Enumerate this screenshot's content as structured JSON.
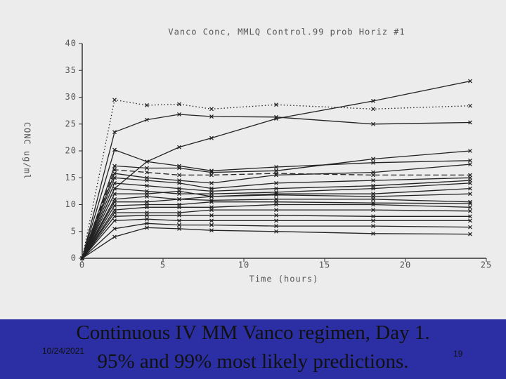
{
  "chart_data": {
    "type": "line",
    "title": "Vanco Conc, MMLQ Control.99 prob Horiz #1",
    "xlabel": "Time (hours)",
    "ylabel": "CONC ug/ml",
    "x": [
      0,
      2,
      4,
      6,
      8,
      12,
      18,
      24
    ],
    "xlim": [
      0,
      25
    ],
    "xticks": [
      0,
      5,
      10,
      15,
      20,
      25
    ],
    "ylim": [
      0,
      40
    ],
    "yticks": [
      0,
      5,
      10,
      15,
      20,
      25,
      30,
      35,
      40
    ],
    "marker": "x",
    "series": [
      {
        "color": "#222",
        "style": "dotted",
        "values": [
          0,
          29.5,
          28.5,
          28.7,
          27.8,
          28.6,
          27.8,
          28.4
        ]
      },
      {
        "color": "#222",
        "values": [
          0,
          23.5,
          25.8,
          26.8,
          26.4,
          26.3,
          25,
          25.3
        ]
      },
      {
        "color": "#222",
        "values": [
          0,
          13,
          18,
          20.7,
          22.4,
          26,
          29.3,
          33
        ]
      },
      {
        "color": "#222",
        "values": [
          0,
          20.2,
          18,
          17.2,
          16.3,
          17,
          17.8,
          18.2
        ]
      },
      {
        "color": "#222",
        "values": [
          0,
          17.2,
          16.8,
          16.8,
          16,
          16.3,
          18.5,
          20
        ]
      },
      {
        "color": "#222",
        "style": "dashed",
        "values": [
          0,
          16.5,
          16,
          15.5,
          15.5,
          15.8,
          15.5,
          15.5
        ]
      },
      {
        "color": "#222",
        "values": [
          0,
          15.8,
          15,
          14.5,
          14,
          15.5,
          16,
          17.5
        ]
      },
      {
        "color": "#222",
        "values": [
          0,
          15,
          14.5,
          14,
          13,
          14,
          14.5,
          15
        ]
      },
      {
        "color": "#222",
        "values": [
          0,
          14,
          13.5,
          13,
          12.5,
          13,
          13.5,
          14.5
        ]
      },
      {
        "color": "#222",
        "values": [
          0,
          13,
          12.5,
          12,
          12,
          12.3,
          13,
          14
        ]
      },
      {
        "color": "#222",
        "values": [
          0,
          12,
          12,
          12.5,
          11.5,
          12,
          12,
          13
        ]
      },
      {
        "color": "#222",
        "values": [
          0,
          11,
          11.5,
          11,
          11.5,
          11.8,
          11.5,
          12
        ]
      },
      {
        "color": "#222",
        "values": [
          0,
          10.5,
          10.5,
          11,
          10.8,
          11,
          11,
          10.5
        ]
      },
      {
        "color": "#222",
        "values": [
          0,
          9.8,
          10,
          10,
          10.5,
          10.5,
          10.3,
          10.2
        ]
      },
      {
        "color": "#222",
        "values": [
          0,
          9,
          9.5,
          9.5,
          9.5,
          10,
          10,
          9.5
        ]
      },
      {
        "color": "#222",
        "values": [
          0,
          8.5,
          8.5,
          8.5,
          9,
          9,
          9,
          8.8
        ]
      },
      {
        "color": "#222",
        "values": [
          0,
          7.8,
          8,
          8,
          8,
          8,
          7.8,
          7.8
        ]
      },
      {
        "color": "#222",
        "values": [
          0,
          7,
          7.3,
          7,
          7,
          7,
          7,
          7
        ]
      },
      {
        "color": "#222",
        "values": [
          0,
          5.5,
          6.5,
          6.2,
          6.2,
          6,
          6,
          5.8
        ]
      },
      {
        "color": "#222",
        "values": [
          0,
          4,
          5.7,
          5.5,
          5.2,
          5,
          4.6,
          4.5
        ]
      }
    ]
  },
  "slide": {
    "line1": "Continuous IV MM Vanco regimen, Day 1.",
    "line2": "95% and 99% most likely predictions.",
    "date": "10/24/2021",
    "page": "19"
  }
}
